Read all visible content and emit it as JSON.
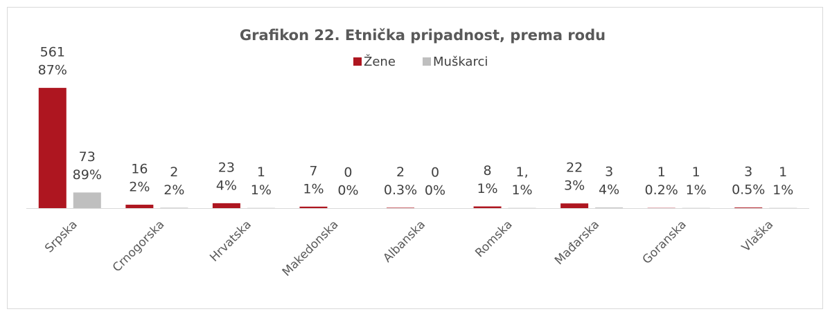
{
  "chart_data": {
    "type": "bar",
    "title": "Grafikon 22. Etnička pripadnost, prema rodu",
    "categories": [
      "Srpska",
      "Crnogorska",
      "Hrvatska",
      "Makedonska",
      "Albanska",
      "Romska",
      "Mađarska",
      "Goranska",
      "Vlaška"
    ],
    "series": [
      {
        "name": "Žene",
        "color": "#ae1620",
        "values": [
          561,
          16,
          23,
          7,
          2,
          8,
          22,
          1,
          3
        ],
        "value_labels": [
          [
            "561",
            "87%"
          ],
          [
            "16",
            "2%"
          ],
          [
            "23",
            "4%"
          ],
          [
            "7",
            "1%"
          ],
          [
            "2",
            "0.3%"
          ],
          [
            "8",
            "1%"
          ],
          [
            "22",
            "3%"
          ],
          [
            "1",
            "0.2%"
          ],
          [
            "3",
            "0.5%"
          ]
        ]
      },
      {
        "name": "Muškarci",
        "color": "#bfbfbf",
        "values": [
          73,
          2,
          1,
          0,
          0,
          1,
          3,
          1,
          1
        ],
        "value_labels": [
          [
            "73",
            "89%"
          ],
          [
            "2",
            "2%"
          ],
          [
            "1",
            "1%"
          ],
          [
            "0",
            "0%"
          ],
          [
            "0",
            "0%"
          ],
          [
            "1,",
            "1%"
          ],
          [
            "3",
            "4%"
          ],
          [
            "1",
            "1%"
          ],
          [
            "1",
            "1%"
          ]
        ]
      }
    ],
    "ylim": [
      0,
      700
    ],
    "legend": "top"
  }
}
